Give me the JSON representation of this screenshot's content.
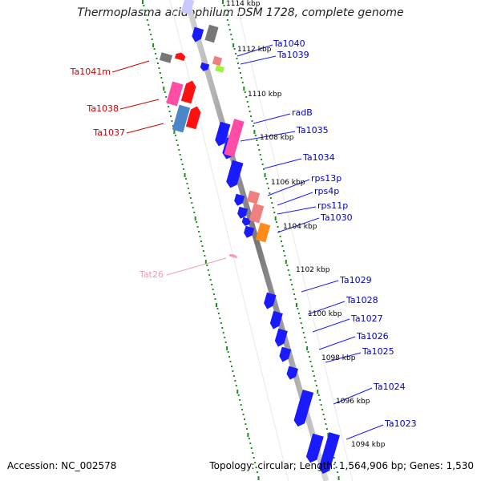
{
  "title": "Thermoplasma acidophilum DSM 1728, complete genome",
  "footer": {
    "accession": "Accession: NC_002578",
    "topology": "Topology: circular; Length: 1,564,906 bp; Genes: 1,530"
  },
  "colors": {
    "forward_cds": "#1a1aff",
    "reverse_cds": "#ff1111",
    "pseudo": "#777777",
    "trna": "#ff99bb",
    "rrna_pink": "#ff4da6",
    "salmon": "#f08080",
    "orange": "#ff8c1a",
    "lime": "#a0f040",
    "steel": "#4a86c8",
    "tick": "#228b22",
    "label_blue": "#0000cc",
    "label_red": "#cc0000",
    "label_pink": "#ee99bb"
  },
  "scale_labels": [
    "1114 kbp",
    "1112 kbp",
    "1110 kbp",
    "1108 kbp",
    "1106 kbp",
    "1104 kbp",
    "1102 kbp",
    "1100 kbp",
    "1098 kbp",
    "1096 kbp",
    "1094 kbp"
  ],
  "gene_labels_right": [
    "Ta1040",
    "Ta1039",
    "radB",
    "Ta1035",
    "Ta1034",
    "rps13p",
    "rps4p",
    "rps11p",
    "Ta1030",
    "Ta1029",
    "Ta1028",
    "Ta1027",
    "Ta1026",
    "Ta1025",
    "Ta1024",
    "Ta1023"
  ],
  "gene_labels_left": [
    "Ta1041m",
    "Ta1038",
    "Ta1037"
  ],
  "trna_label": "Tat26"
}
